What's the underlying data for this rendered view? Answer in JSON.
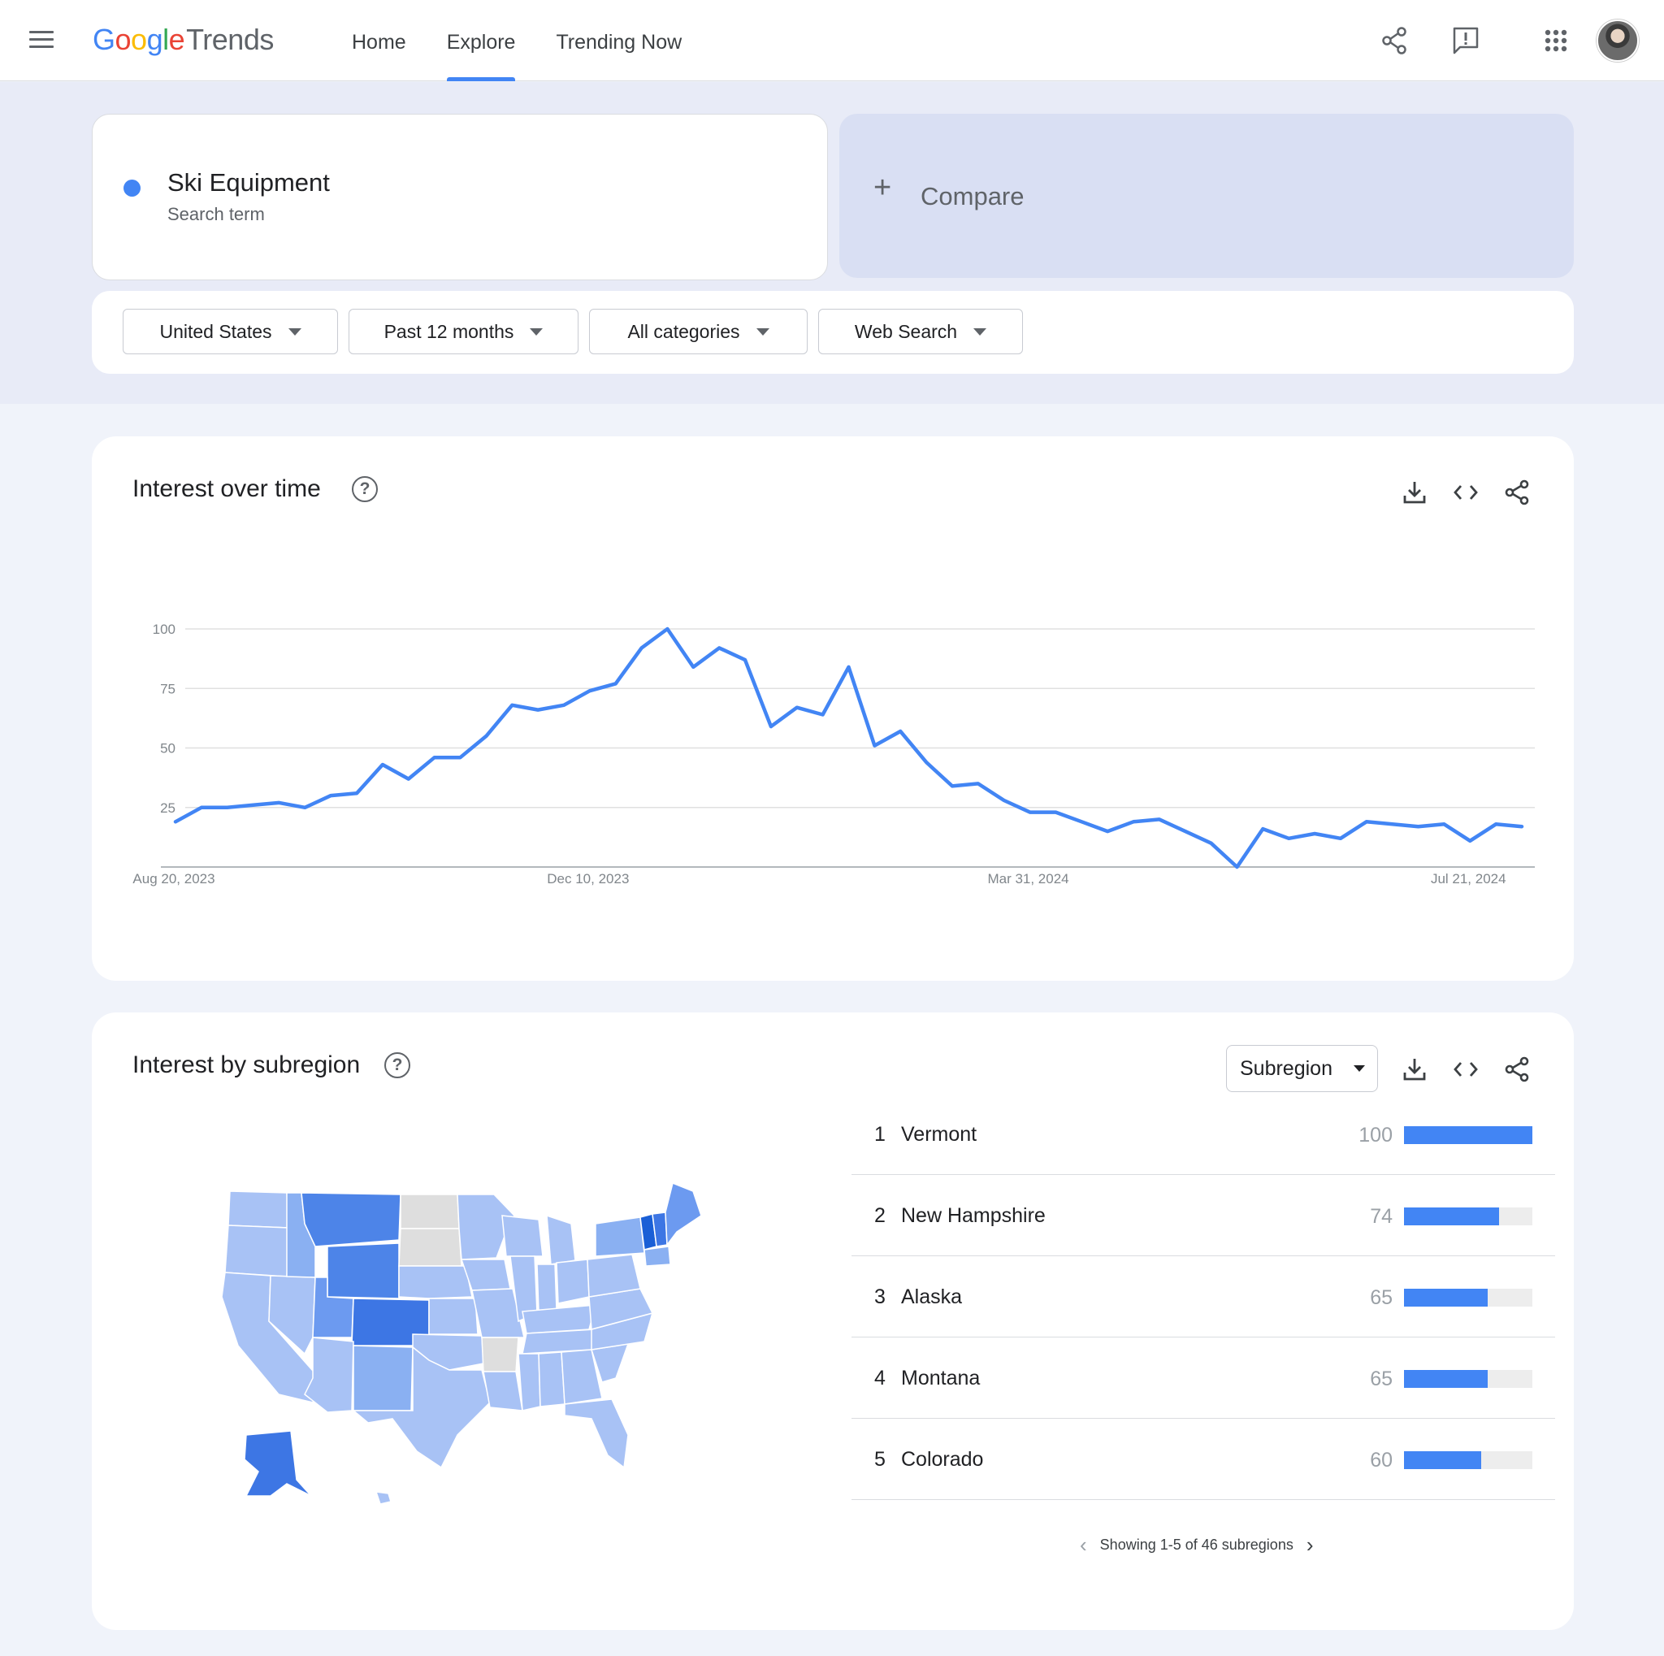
{
  "header": {
    "logo": {
      "google": [
        "G",
        "o",
        "o",
        "g",
        "l",
        "e"
      ],
      "product": "Trends"
    },
    "nav": [
      {
        "label": "Home",
        "active": false
      },
      {
        "label": "Explore",
        "active": true
      },
      {
        "label": "Trending Now",
        "active": false
      }
    ],
    "icons": [
      "menu-icon",
      "share-icon",
      "feedback-icon",
      "apps-grid-icon",
      "account-avatar"
    ]
  },
  "search": {
    "term": "Ski Equipment",
    "term_type": "Search term",
    "term_color": "#4285f4",
    "compare_label": "Compare"
  },
  "filters": [
    {
      "label": "United States"
    },
    {
      "label": "Past 12 months"
    },
    {
      "label": "All categories"
    },
    {
      "label": "Web Search"
    }
  ],
  "interest_over_time": {
    "title": "Interest over time",
    "actions": [
      "download-icon",
      "embed-icon",
      "share-icon"
    ]
  },
  "chart_data": {
    "type": "line",
    "title": "",
    "xlabel": "",
    "ylabel": "",
    "ylim": [
      0,
      100
    ],
    "yticks": [
      25,
      50,
      75,
      100
    ],
    "xtick_labels": [
      "Aug 20, 2023",
      "Dec 10, 2023",
      "Mar 31, 2024",
      "Jul 21, 2024"
    ],
    "grid": true,
    "color": "#4285f4",
    "series": [
      {
        "values": [
          19,
          25,
          25,
          26,
          27,
          25,
          30,
          31,
          43,
          37,
          46,
          46,
          55,
          68,
          66,
          68,
          74,
          77,
          92,
          100,
          84,
          92,
          87,
          59,
          67,
          64,
          84,
          51,
          57,
          44,
          34,
          35,
          28,
          23,
          23,
          19,
          15,
          19,
          20,
          15,
          10,
          0,
          16,
          12,
          14,
          12,
          19,
          18,
          17,
          18,
          11,
          18,
          17
        ]
      }
    ]
  },
  "interest_by_subregion": {
    "title": "Interest by subregion",
    "selector": "Subregion",
    "actions": [
      "download-icon",
      "embed-icon",
      "share-icon"
    ],
    "ranking": [
      {
        "rank": "1",
        "name": "Vermont",
        "value": 100
      },
      {
        "rank": "2",
        "name": "New Hampshire",
        "value": 74
      },
      {
        "rank": "3",
        "name": "Alaska",
        "value": 65
      },
      {
        "rank": "4",
        "name": "Montana",
        "value": 65
      },
      {
        "rank": "5",
        "name": "Colorado",
        "value": 60
      }
    ],
    "pager_text": "Showing 1-5 of 46 subregions",
    "map_colors": {
      "low": "#a8c2f5",
      "mid": "#8ab0f2",
      "high": "#4d84e8",
      "top": "#1a5fd6",
      "none": "#dedede"
    }
  }
}
